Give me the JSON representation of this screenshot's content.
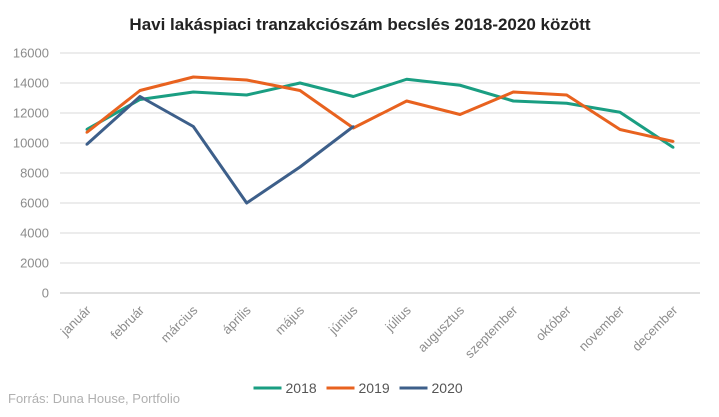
{
  "chart_data": {
    "type": "line",
    "title": "Havi lakáspiaci tranzakciószám becslés 2018-2020 között",
    "xlabel": "",
    "ylabel": "",
    "categories": [
      "január",
      "február",
      "március",
      "április",
      "május",
      "június",
      "július",
      "augusztus",
      "szeptember",
      "október",
      "november",
      "december"
    ],
    "ylim": [
      0,
      16000
    ],
    "yticks": [
      "0",
      "2000",
      "4000",
      "6000",
      "8000",
      "10000",
      "12000",
      "14000",
      "16000"
    ],
    "grid": true,
    "legend_position": "bottom",
    "series": [
      {
        "name": "2018",
        "color": "#1a9e82",
        "values": [
          10900,
          12900,
          13400,
          13200,
          14000,
          13100,
          14250,
          13850,
          12800,
          12650,
          12050,
          9700
        ]
      },
      {
        "name": "2019",
        "color": "#e8621f",
        "values": [
          10700,
          13500,
          14400,
          14200,
          13500,
          11000,
          12800,
          11900,
          13400,
          13200,
          10900,
          10100
        ]
      },
      {
        "name": "2020",
        "color": "#3d5f8a",
        "values": [
          9900,
          13100,
          11100,
          6000,
          8400,
          11100,
          null,
          null,
          null,
          null,
          null,
          null
        ]
      }
    ]
  },
  "source": "Forrás: Duna House, Portfolio"
}
